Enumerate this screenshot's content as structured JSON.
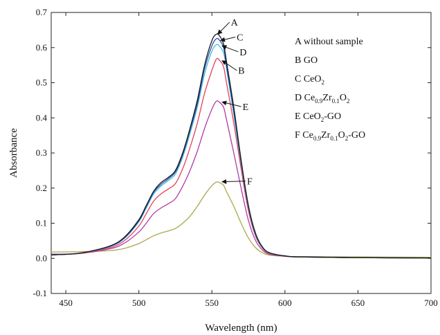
{
  "chart_data": {
    "type": "line",
    "xlabel": "Wavelength (nm)",
    "ylabel": "Absorbance",
    "xlim": [
      440,
      700
    ],
    "ylim": [
      -0.1,
      0.7
    ],
    "x_ticks": [
      {
        "value": 450,
        "label": "450"
      },
      {
        "value": 500,
        "label": "500"
      },
      {
        "value": 550,
        "label": "550"
      },
      {
        "value": 600,
        "label": "600"
      },
      {
        "value": 650,
        "label": "650"
      },
      {
        "value": 700,
        "label": "700"
      }
    ],
    "y_ticks": [
      {
        "value": -0.1,
        "label": "-0.1"
      },
      {
        "value": 0.0,
        "label": "0.0"
      },
      {
        "value": 0.1,
        "label": "0.1"
      },
      {
        "value": 0.2,
        "label": "0.2"
      },
      {
        "value": 0.3,
        "label": "0.3"
      },
      {
        "value": 0.4,
        "label": "0.4"
      },
      {
        "value": 0.5,
        "label": "0.5"
      },
      {
        "value": 0.6,
        "label": "0.6"
      },
      {
        "value": 0.7,
        "label": "0.7"
      }
    ],
    "series": [
      {
        "id": "A",
        "color": "#1a1a1a",
        "x": [
          440,
          460,
          480,
          490,
          500,
          505,
          510,
          515,
          520,
          525,
          530,
          535,
          540,
          545,
          550,
          553,
          555,
          558,
          560,
          565,
          570,
          575,
          580,
          585,
          590,
          600,
          610,
          650,
          700
        ],
        "y": [
          0.01,
          0.015,
          0.035,
          0.06,
          0.11,
          0.15,
          0.19,
          0.215,
          0.23,
          0.25,
          0.3,
          0.37,
          0.45,
          0.55,
          0.62,
          0.638,
          0.635,
          0.61,
          0.56,
          0.43,
          0.28,
          0.15,
          0.07,
          0.03,
          0.015,
          0.007,
          0.004,
          0.002,
          0.001
        ]
      },
      {
        "id": "C",
        "color": "#1f4fb0",
        "x": [
          440,
          460,
          480,
          490,
          500,
          505,
          510,
          515,
          520,
          525,
          530,
          535,
          540,
          545,
          550,
          553,
          555,
          558,
          560,
          565,
          570,
          575,
          580,
          585,
          590,
          600,
          610,
          650,
          700
        ],
        "y": [
          0.01,
          0.015,
          0.034,
          0.058,
          0.107,
          0.147,
          0.187,
          0.21,
          0.226,
          0.246,
          0.295,
          0.364,
          0.44,
          0.54,
          0.605,
          0.625,
          0.622,
          0.6,
          0.55,
          0.42,
          0.275,
          0.148,
          0.068,
          0.03,
          0.015,
          0.007,
          0.004,
          0.002,
          0.001
        ]
      },
      {
        "id": "D",
        "color": "#48b8d8",
        "x": [
          440,
          460,
          480,
          490,
          500,
          505,
          510,
          515,
          520,
          525,
          530,
          535,
          540,
          545,
          550,
          553,
          555,
          558,
          560,
          565,
          570,
          575,
          580,
          585,
          590,
          600,
          610,
          650,
          700
        ],
        "y": [
          0.01,
          0.015,
          0.033,
          0.056,
          0.104,
          0.143,
          0.182,
          0.205,
          0.221,
          0.24,
          0.288,
          0.355,
          0.43,
          0.525,
          0.59,
          0.608,
          0.605,
          0.585,
          0.54,
          0.41,
          0.27,
          0.145,
          0.066,
          0.029,
          0.014,
          0.007,
          0.004,
          0.002,
          0.001
        ]
      },
      {
        "id": "B",
        "color": "#e0405a",
        "x": [
          440,
          460,
          480,
          490,
          500,
          505,
          510,
          515,
          520,
          525,
          530,
          535,
          540,
          545,
          550,
          553,
          555,
          558,
          560,
          565,
          570,
          575,
          580,
          585,
          590,
          600,
          610,
          650,
          700
        ],
        "y": [
          0.01,
          0.014,
          0.03,
          0.05,
          0.092,
          0.127,
          0.162,
          0.183,
          0.197,
          0.213,
          0.255,
          0.315,
          0.385,
          0.47,
          0.535,
          0.567,
          0.565,
          0.545,
          0.5,
          0.385,
          0.255,
          0.135,
          0.062,
          0.027,
          0.013,
          0.006,
          0.004,
          0.002,
          0.001
        ]
      },
      {
        "id": "E",
        "color": "#b03aa8",
        "x": [
          440,
          460,
          480,
          490,
          500,
          505,
          510,
          515,
          520,
          525,
          530,
          535,
          540,
          545,
          550,
          553,
          555,
          558,
          560,
          565,
          570,
          575,
          580,
          585,
          590,
          600,
          610,
          650,
          700
        ],
        "y": [
          0.012,
          0.014,
          0.027,
          0.043,
          0.075,
          0.1,
          0.127,
          0.143,
          0.155,
          0.17,
          0.205,
          0.25,
          0.305,
          0.37,
          0.425,
          0.447,
          0.445,
          0.43,
          0.395,
          0.3,
          0.2,
          0.108,
          0.05,
          0.022,
          0.011,
          0.006,
          0.004,
          0.002,
          0.001
        ]
      },
      {
        "id": "F",
        "color": "#a8a84a",
        "x": [
          440,
          460,
          480,
          490,
          500,
          505,
          510,
          515,
          520,
          525,
          530,
          535,
          540,
          545,
          550,
          553,
          555,
          558,
          560,
          565,
          570,
          575,
          580,
          585,
          590,
          600,
          610,
          650,
          700
        ],
        "y": [
          0.018,
          0.019,
          0.022,
          0.028,
          0.042,
          0.053,
          0.064,
          0.072,
          0.078,
          0.085,
          0.1,
          0.12,
          0.148,
          0.18,
          0.207,
          0.217,
          0.216,
          0.208,
          0.19,
          0.148,
          0.1,
          0.058,
          0.03,
          0.015,
          0.009,
          0.006,
          0.005,
          0.004,
          0.003
        ]
      }
    ],
    "curve_labels": [
      {
        "text": "A",
        "series": "A",
        "lx": 553,
        "ly": 0.638,
        "tx": 563,
        "ty": 0.672
      },
      {
        "text": "C",
        "series": "C",
        "lx": 555,
        "ly": 0.62,
        "tx": 567,
        "ty": 0.63
      },
      {
        "text": "D",
        "series": "D",
        "lx": 556,
        "ly": 0.605,
        "tx": 569,
        "ty": 0.588
      },
      {
        "text": "B",
        "series": "B",
        "lx": 556,
        "ly": 0.563,
        "tx": 568,
        "ty": 0.535
      },
      {
        "text": "E",
        "series": "E",
        "lx": 556,
        "ly": 0.445,
        "tx": 571,
        "ty": 0.432
      },
      {
        "text": "F",
        "series": "F",
        "lx": 556,
        "ly": 0.218,
        "tx": 574,
        "ty": 0.22
      }
    ],
    "legend": {
      "position": "top-right",
      "entries": [
        [
          {
            "t": "A without sample"
          }
        ],
        [
          {
            "t": "B GO"
          }
        ],
        [
          {
            "t": "C CeO"
          },
          {
            "t": "2",
            "sub": true
          }
        ],
        [
          {
            "t": "D Ce"
          },
          {
            "t": "0.9",
            "sub": true
          },
          {
            "t": "Zr"
          },
          {
            "t": "0.1",
            "sub": true
          },
          {
            "t": "O"
          },
          {
            "t": "2",
            "sub": true
          }
        ],
        [
          {
            "t": "E CeO"
          },
          {
            "t": "2",
            "sub": true
          },
          {
            "t": "-GO"
          }
        ],
        [
          {
            "t": "F Ce"
          },
          {
            "t": "0.9",
            "sub": true
          },
          {
            "t": "Zr"
          },
          {
            "t": "0.1",
            "sub": true
          },
          {
            "t": "O"
          },
          {
            "t": "2",
            "sub": true
          },
          {
            "t": "-GO"
          }
        ]
      ]
    },
    "grid": false
  }
}
